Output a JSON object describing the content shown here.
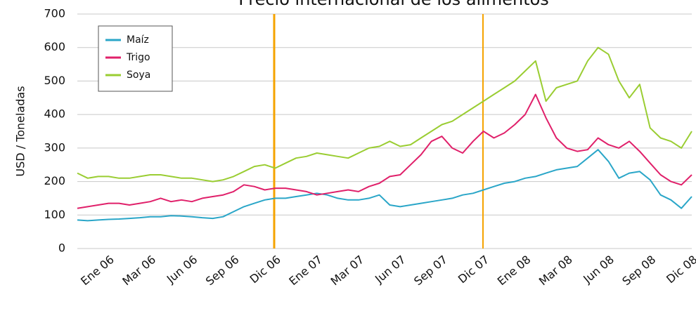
{
  "chart_data": {
    "type": "line",
    "title": "Precio internacional de los alimentos",
    "y_label": "USD / Toneladas",
    "categories": [
      null,
      null,
      null,
      "Ene 06",
      null,
      null,
      null,
      "Mar 06",
      null,
      null,
      null,
      "Jun 06",
      null,
      null,
      null,
      "Sep 06",
      null,
      null,
      null,
      "Dic 06",
      null,
      null,
      null,
      "Ene 07",
      null,
      null,
      null,
      "Mar 07",
      null,
      null,
      null,
      "Jun 07",
      null,
      null,
      null,
      "Sep 07",
      null,
      null,
      null,
      "Dic 07",
      null,
      null,
      null,
      "Ene 08",
      null,
      null,
      null,
      "Mar 08",
      null,
      null,
      null,
      "Jun 08",
      null,
      null,
      null,
      "Sep 08",
      null,
      null,
      null,
      "Dic 08"
    ],
    "series": [
      {
        "name": "Maíz",
        "color": "#2aa6c8",
        "values": [
          85,
          83,
          85,
          87,
          88,
          90,
          92,
          95,
          95,
          98,
          97,
          95,
          92,
          90,
          95,
          110,
          125,
          135,
          145,
          150,
          150,
          155,
          160,
          165,
          160,
          150,
          145,
          145,
          150,
          160,
          130,
          125,
          130,
          135,
          140,
          145,
          150,
          160,
          165,
          175,
          185,
          195,
          200,
          210,
          215,
          225,
          235,
          240,
          245,
          270,
          295,
          260,
          210,
          225,
          230,
          205,
          160,
          145,
          120,
          155
        ]
      },
      {
        "name": "Trigo",
        "color": "#e0206a",
        "values": [
          120,
          125,
          130,
          135,
          135,
          130,
          135,
          140,
          150,
          140,
          145,
          140,
          150,
          155,
          160,
          170,
          190,
          185,
          175,
          180,
          180,
          175,
          170,
          160,
          165,
          170,
          175,
          170,
          185,
          195,
          215,
          220,
          250,
          280,
          320,
          335,
          300,
          285,
          320,
          350,
          330,
          345,
          370,
          400,
          460,
          390,
          330,
          300,
          290,
          295,
          330,
          310,
          300,
          320,
          290,
          255,
          220,
          200,
          190,
          220
        ]
      },
      {
        "name": "Soya",
        "color": "#9acd32",
        "values": [
          225,
          210,
          215,
          215,
          210,
          210,
          215,
          220,
          220,
          215,
          210,
          210,
          205,
          200,
          205,
          215,
          230,
          245,
          250,
          240,
          255,
          270,
          275,
          285,
          280,
          275,
          270,
          285,
          300,
          305,
          320,
          305,
          310,
          330,
          350,
          370,
          380,
          400,
          420,
          440,
          460,
          480,
          500,
          530,
          560,
          440,
          480,
          490,
          500,
          560,
          600,
          580,
          500,
          450,
          490,
          360,
          330,
          320,
          300,
          350
        ]
      }
    ],
    "ylim": [
      0,
      700
    ],
    "yticks": [
      0,
      100,
      200,
      300,
      400,
      500,
      600,
      700
    ],
    "grid": true,
    "legend": "upper left"
  }
}
